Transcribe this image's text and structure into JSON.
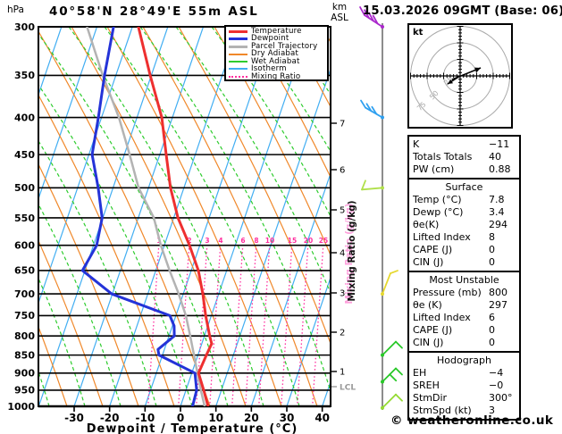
{
  "header": {
    "pressure_unit": "hPa",
    "title": "40°58'N 28°49'E 55m ASL",
    "datetime": "15.03.2026 09GMT (Base: 06)",
    "altitude_unit_line1": "km",
    "altitude_unit_line2": "ASL"
  },
  "legend": {
    "items": [
      {
        "label": "Temperature",
        "color": "#ee2f2f",
        "style": "solid-thick"
      },
      {
        "label": "Dewpoint",
        "color": "#2433d8",
        "style": "solid-thick"
      },
      {
        "label": "Parcel Trajectory",
        "color": "#b3b3b3",
        "style": "solid-thick"
      },
      {
        "label": "Dry Adiabat",
        "color": "#f0882a",
        "style": "solid-thin"
      },
      {
        "label": "Wet Adiabat",
        "color": "#2ecc2e",
        "style": "solid-thin"
      },
      {
        "label": "Isotherm",
        "color": "#42aef2",
        "style": "solid-thin"
      },
      {
        "label": "Mixing Ratio",
        "color": "#ff2f9f",
        "style": "dotted"
      }
    ]
  },
  "chart_data": {
    "type": "line",
    "title": "Skew-T log-P sounding",
    "x_axis": {
      "label": "Dewpoint / Temperature (°C)",
      "ticks": [
        -30,
        -20,
        -10,
        0,
        10,
        20,
        30,
        40
      ],
      "range": [
        -40,
        42
      ]
    },
    "y_axis": {
      "unit": "hPa",
      "scale": "log",
      "ticks": [
        300,
        350,
        400,
        450,
        500,
        550,
        600,
        650,
        700,
        750,
        800,
        850,
        900,
        950,
        1000
      ]
    },
    "km_axis": {
      "ticks": [
        7,
        6,
        5,
        4,
        3,
        2,
        1
      ],
      "lcl_label": "LCL"
    },
    "mixing_ratio": {
      "label": "Mixing Ratio (g/kg)",
      "values": [
        1,
        2,
        3,
        4,
        6,
        8,
        10,
        15,
        20,
        25
      ],
      "line_color": "#ff2f9f",
      "shadow_color": "#ffa0dc"
    },
    "background": {
      "isotherm_color": "#42aef2",
      "dry_adiabat_color": "#f0882a",
      "wet_adiabat_color": "#2ecc2e",
      "grid_color": "#000000"
    },
    "series": [
      {
        "name": "Temperature",
        "color": "#ee2f2f",
        "width": 3,
        "points_p_t": [
          [
            300,
            -48.3
          ],
          [
            350,
            -40.3
          ],
          [
            400,
            -33.0
          ],
          [
            450,
            -28.2
          ],
          [
            500,
            -23.8
          ],
          [
            550,
            -18.8
          ],
          [
            600,
            -12.9
          ],
          [
            650,
            -8.0
          ],
          [
            700,
            -4.5
          ],
          [
            750,
            -1.6
          ],
          [
            800,
            1.5
          ],
          [
            820,
            2.8
          ],
          [
            850,
            2.4
          ],
          [
            900,
            1.9
          ],
          [
            950,
            5.0
          ],
          [
            1000,
            7.8
          ]
        ]
      },
      {
        "name": "Dewpoint",
        "color": "#2433d8",
        "width": 3,
        "points_p_t": [
          [
            300,
            -55.3
          ],
          [
            350,
            -53.2
          ],
          [
            400,
            -50.9
          ],
          [
            450,
            -49.1
          ],
          [
            500,
            -44.2
          ],
          [
            550,
            -40.2
          ],
          [
            600,
            -39.1
          ],
          [
            650,
            -40.7
          ],
          [
            700,
            -30.2
          ],
          [
            750,
            -11.7
          ],
          [
            775,
            -9.5
          ],
          [
            800,
            -8.5
          ],
          [
            835,
            -11.8
          ],
          [
            850,
            -11.0
          ],
          [
            900,
            0.9
          ],
          [
            950,
            3.0
          ],
          [
            1000,
            3.4
          ]
        ]
      },
      {
        "name": "Parcel Trajectory",
        "color": "#b3b3b3",
        "width": 2.5,
        "points_p_t": [
          [
            300,
            -62.8
          ],
          [
            350,
            -53.7
          ],
          [
            400,
            -45.1
          ],
          [
            450,
            -38.5
          ],
          [
            500,
            -32.8
          ],
          [
            550,
            -25.6
          ],
          [
            600,
            -21.0
          ],
          [
            650,
            -16.1
          ],
          [
            700,
            -11.3
          ],
          [
            750,
            -7.2
          ],
          [
            800,
            -4.0
          ],
          [
            850,
            -1.1
          ],
          [
            900,
            1.6
          ],
          [
            950,
            4.2
          ],
          [
            1000,
            6.8
          ]
        ]
      }
    ]
  },
  "wind_barbs": [
    {
      "level_hPa": 300,
      "color": "#aa28cc",
      "shape": "nw4"
    },
    {
      "level_hPa": 400,
      "color": "#2fa0f0",
      "shape": "nw3"
    },
    {
      "level_hPa": 500,
      "color": "#b0e04a",
      "shape": "w1"
    },
    {
      "level_hPa": 700,
      "color": "#e6d830",
      "shape": "ne1"
    },
    {
      "level_hPa": 850,
      "color": "#28c828",
      "shape": "se1"
    },
    {
      "level_hPa": 925,
      "color": "#28c828",
      "shape": "se2"
    },
    {
      "level_hPa": 1005,
      "color": "#94da32",
      "shape": "se1"
    }
  ],
  "hodograph": {
    "unit_label": "kt",
    "ring_labels": [
      "25",
      "50",
      "75"
    ],
    "ring_color": "#aaaaaa",
    "arrow_color": "#000000"
  },
  "panel": {
    "indices": {
      "rows": [
        [
          "K",
          "−11"
        ],
        [
          "Totals Totals",
          "40"
        ],
        [
          "PW (cm)",
          "0.88"
        ]
      ]
    },
    "surface": {
      "header": "Surface",
      "rows": [
        [
          "Temp (°C)",
          "7.8"
        ],
        [
          "Dewp (°C)",
          "3.4"
        ],
        [
          "θe(K)",
          "294"
        ],
        [
          "Lifted Index",
          "8"
        ],
        [
          "CAPE (J)",
          "0"
        ],
        [
          "CIN (J)",
          "0"
        ]
      ]
    },
    "most_unstable": {
      "header": "Most Unstable",
      "rows": [
        [
          "Pressure (mb)",
          "800"
        ],
        [
          "θe (K)",
          "297"
        ],
        [
          "Lifted Index",
          "6"
        ],
        [
          "CAPE (J)",
          "0"
        ],
        [
          "CIN (J)",
          "0"
        ]
      ]
    },
    "hodograph_stats": {
      "header": "Hodograph",
      "rows": [
        [
          "EH",
          "−4"
        ],
        [
          "SREH",
          "−0"
        ],
        [
          "StmDir",
          "300°"
        ],
        [
          "StmSpd (kt)",
          "3"
        ]
      ]
    }
  },
  "footer": {
    "credit": "© weatheronline.co.uk"
  }
}
